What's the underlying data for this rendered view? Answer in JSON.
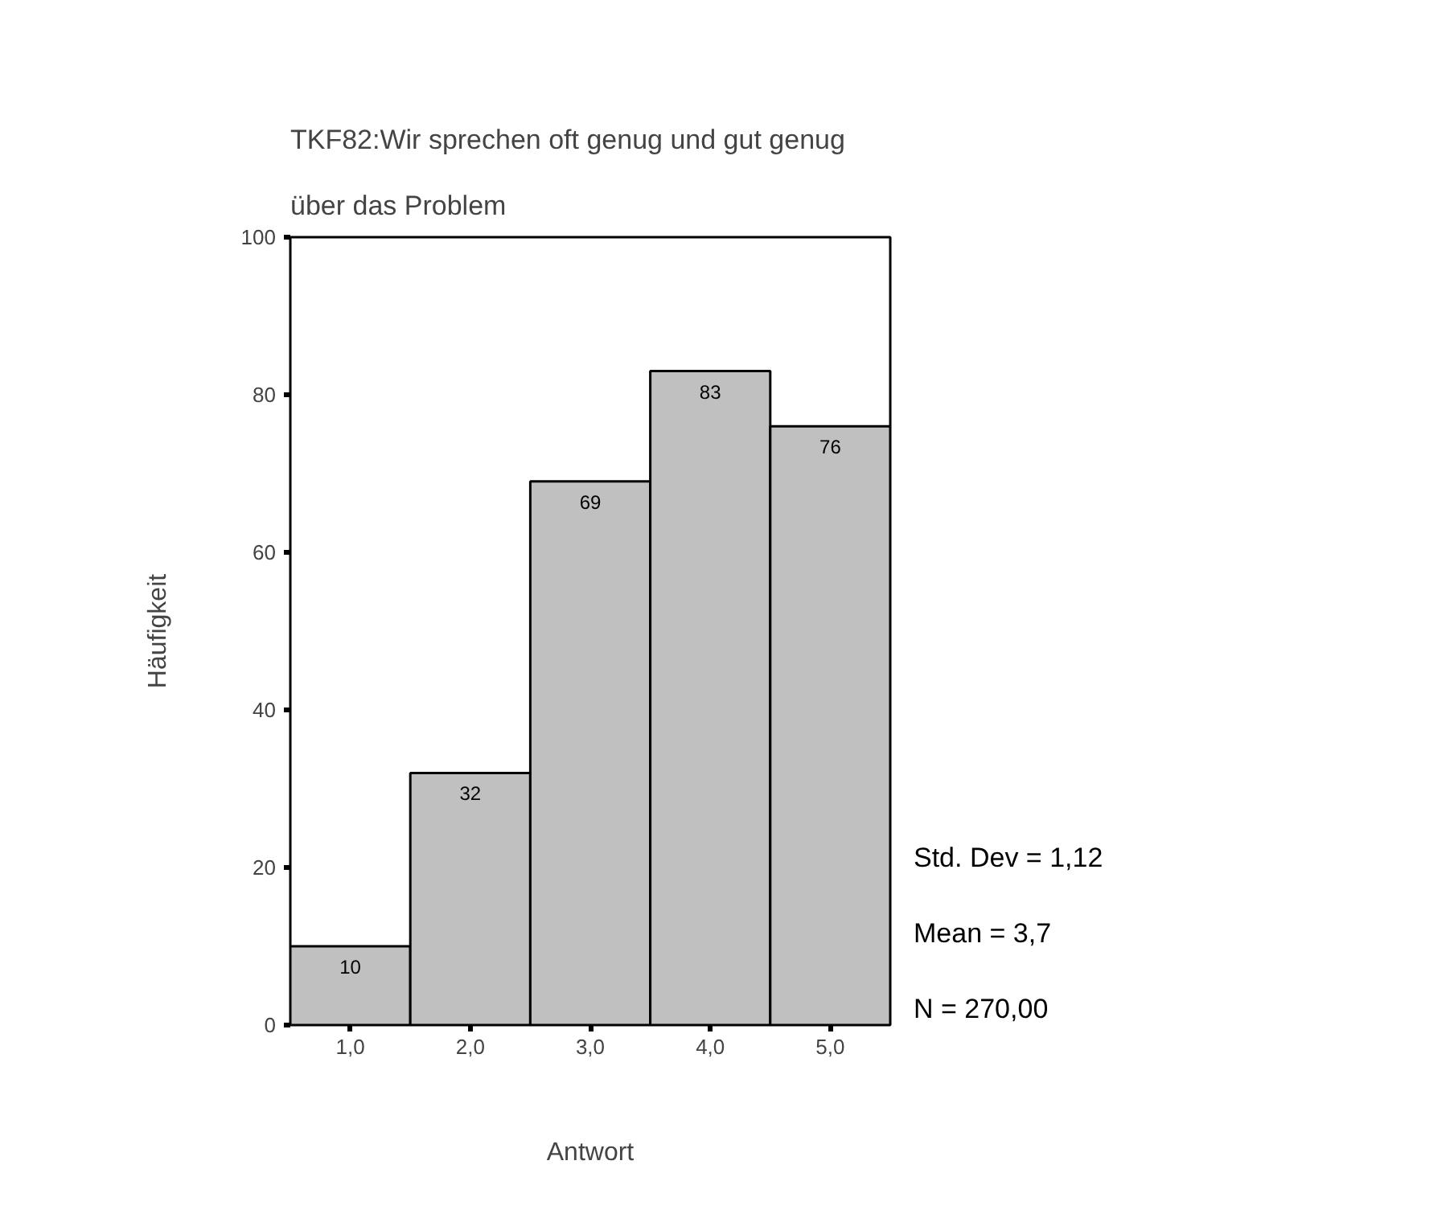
{
  "chart_data": {
    "type": "histogram",
    "title": "TKF82:Wir sprechen oft genug und gut genug",
    "subtitle": "über das Problem",
    "xlabel": "Antwort",
    "ylabel": "Häufigkeit",
    "bins": [
      0.5,
      1.5,
      2.5,
      3.5,
      4.5,
      5.5
    ],
    "values": [
      10,
      32,
      69,
      83,
      76
    ],
    "color": "#c0c0c0",
    "data_labels": true,
    "xlim": [
      0.5,
      5.5
    ],
    "ylim": [
      0,
      100
    ],
    "xticks": [
      {
        "value": 1,
        "label": "1,0"
      },
      {
        "value": 2,
        "label": "2,0"
      },
      {
        "value": 3,
        "label": "3,0"
      },
      {
        "value": 4,
        "label": "4,0"
      },
      {
        "value": 5,
        "label": "5,0"
      }
    ],
    "yticks": [
      0,
      20,
      40,
      60,
      80,
      100
    ],
    "grid": false,
    "annotations": [
      "Std. Dev = 1,12",
      "Mean = 3,7",
      "N = 270,00"
    ]
  }
}
